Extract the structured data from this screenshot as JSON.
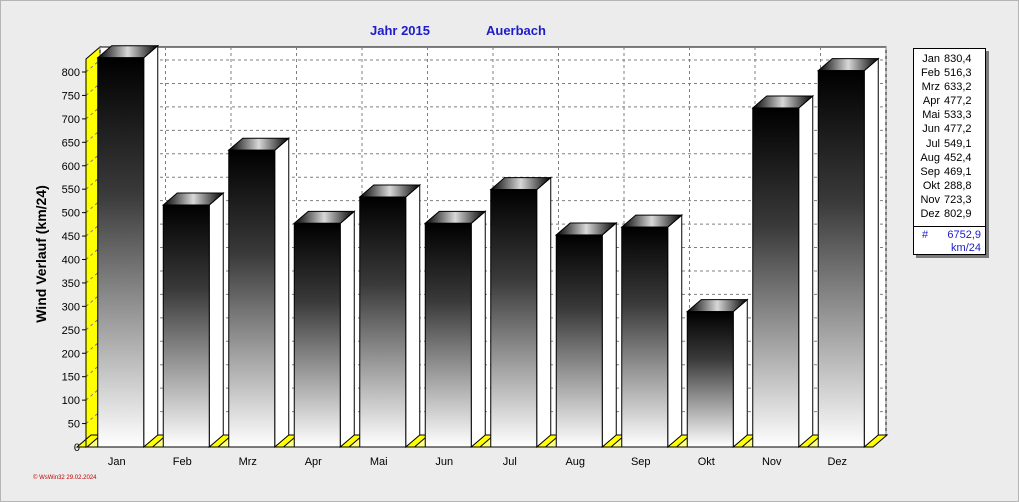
{
  "title": {
    "year_label": "Jahr  2015",
    "location": "Auerbach"
  },
  "credit": "© WsWin32  29.02.2024",
  "legend": {
    "rows": [
      {
        "month": "Jan",
        "value": "830,4"
      },
      {
        "month": "Feb",
        "value": "516,3"
      },
      {
        "month": "Mrz",
        "value": "633,2"
      },
      {
        "month": "Apr",
        "value": "477,2"
      },
      {
        "month": "Mai",
        "value": "533,3"
      },
      {
        "month": "Jun",
        "value": "477,2"
      },
      {
        "month": "Jul",
        "value": "549,1"
      },
      {
        "month": "Aug",
        "value": "452,4"
      },
      {
        "month": "Sep",
        "value": "469,1"
      },
      {
        "month": "Okt",
        "value": "288,8"
      },
      {
        "month": "Nov",
        "value": "723,3"
      },
      {
        "month": "Dez",
        "value": "802,9"
      }
    ],
    "total_symbol": "#",
    "total_value": "6752,9",
    "total_unit": "km/24"
  },
  "colors": {
    "title": "#1c1cc8",
    "floor": "#ffff80",
    "wall_left": "#ffff00",
    "plot_bg": "#ffffff",
    "grid": "#808080"
  },
  "chart_data": {
    "type": "bar",
    "style": "3d-gradient-black",
    "categories": [
      "Jan",
      "Feb",
      "Mrz",
      "Apr",
      "Mai",
      "Jun",
      "Jul",
      "Aug",
      "Sep",
      "Okt",
      "Nov",
      "Dez"
    ],
    "values": [
      830.4,
      516.3,
      633.2,
      477.2,
      533.3,
      477.2,
      549.1,
      452.4,
      469.1,
      288.8,
      723.3,
      802.9
    ],
    "ylabel": "Wind Verlauf  (km/24)",
    "ylim": [
      0,
      800
    ],
    "yticks": [
      0,
      50,
      100,
      150,
      200,
      250,
      300,
      350,
      400,
      450,
      500,
      550,
      600,
      650,
      700,
      750,
      800
    ],
    "grid": true,
    "legend_placement": "right"
  }
}
